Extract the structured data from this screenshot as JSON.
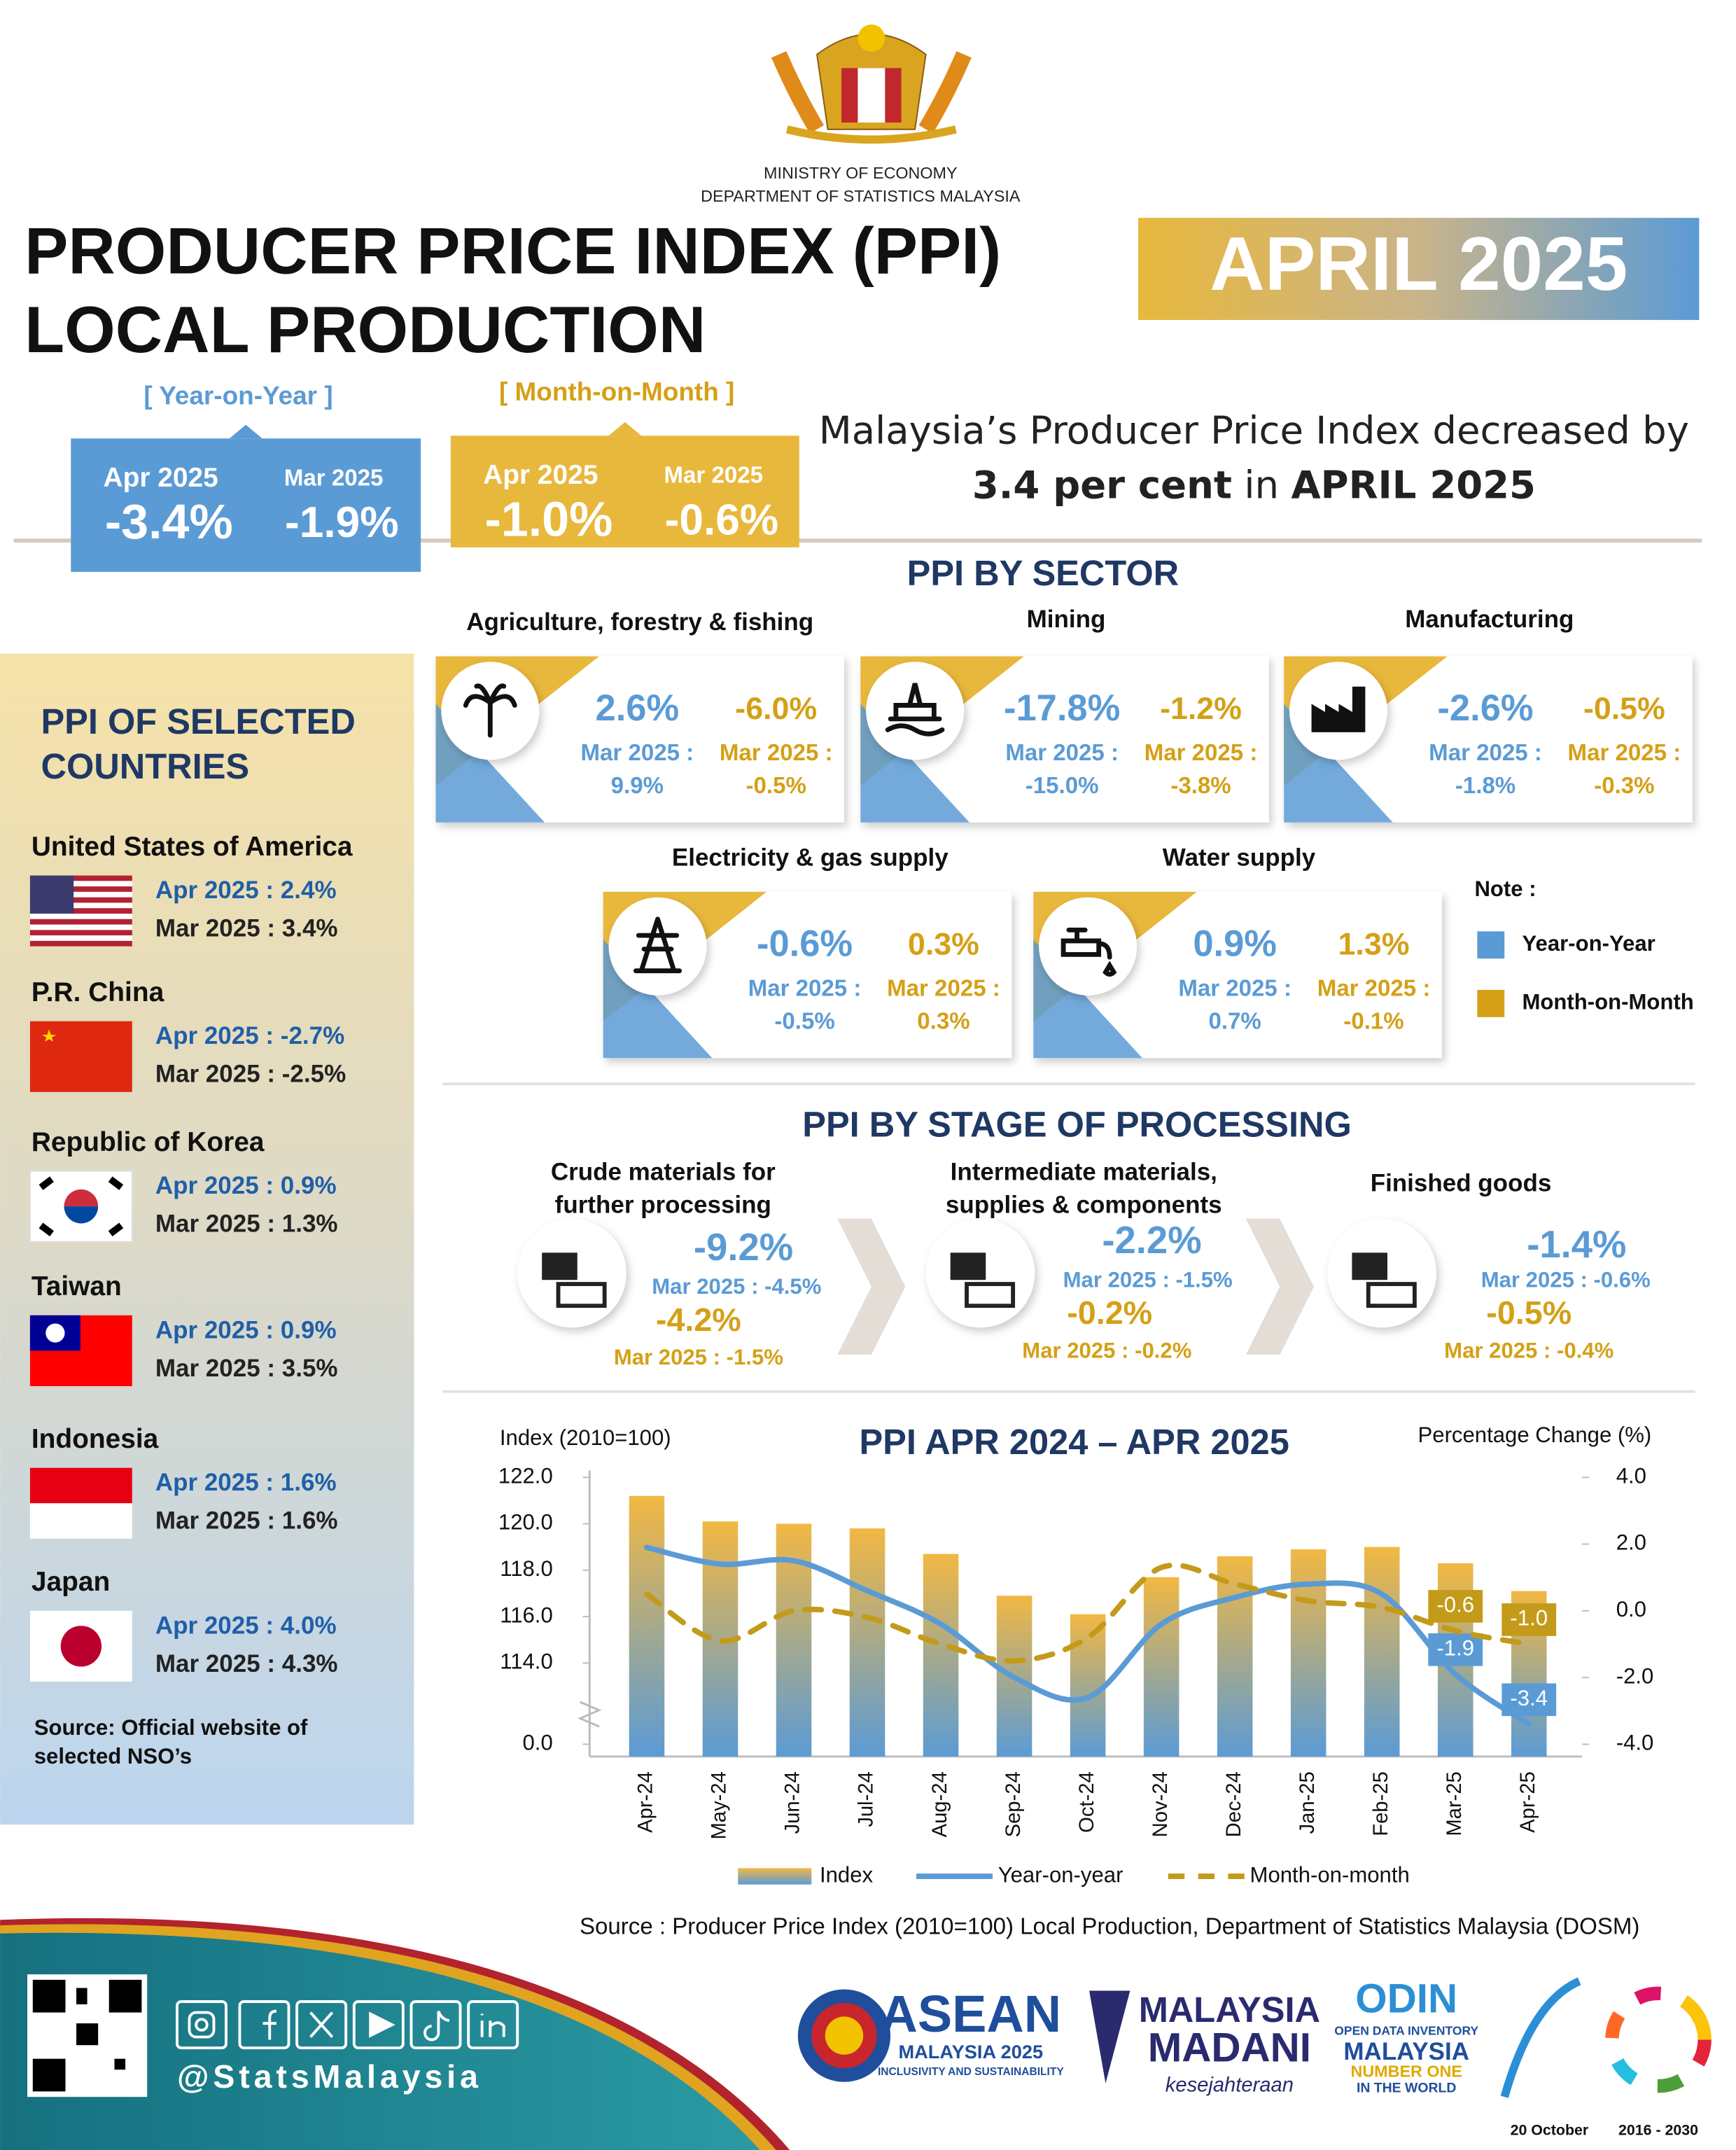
{
  "header": {
    "ministry": "MINISTRY OF ECONOMY",
    "department": "DEPARTMENT OF STATISTICS MALAYSIA",
    "title": [
      "PRODUCER PRICE INDEX (PPI)",
      "LOCAL PRODUCTION"
    ],
    "period": "APRIL 2025"
  },
  "headline": {
    "year_on_year": {
      "label": "[ Year-on-Year ]",
      "items": [
        {
          "period": "Apr 2025",
          "value": "-3.4%"
        },
        {
          "period": "Mar 2025",
          "value": "-1.9%"
        }
      ]
    },
    "month_on_month": {
      "label": "[ Month-on-Month ]",
      "items": [
        {
          "period": "Apr 2025",
          "value": "-1.0%"
        },
        {
          "period": "Mar 2025",
          "value": "-0.6%"
        }
      ]
    }
  },
  "summary": {
    "line1": "Malaysia’s Producer Price Index decreased by",
    "line2": [
      "3.4 per cent",
      "in",
      "APRIL 2025"
    ]
  },
  "sectors": {
    "title": "PPI BY SECTOR",
    "items": [
      {
        "name": "Agriculture, forestry & fishing",
        "yoy": "2.6%",
        "yoy_prev_label": "Mar 2025 :",
        "yoy_prev": "9.9%",
        "mom": "-6.0%",
        "mom_prev_label": "Mar 2025 :",
        "mom_prev": "-0.5%"
      },
      {
        "name": "Mining",
        "yoy": "-17.8%",
        "yoy_prev_label": "Mar 2025 :",
        "yoy_prev": "-15.0%",
        "mom": "-1.2%",
        "mom_prev_label": "Mar 2025 :",
        "mom_prev": "-3.8%"
      },
      {
        "name": "Manufacturing",
        "yoy": "-2.6%",
        "yoy_prev_label": "Mar 2025 :",
        "yoy_prev": "-1.8%",
        "mom": "-0.5%",
        "mom_prev_label": "Mar 2025 :",
        "mom_prev": "-0.3%"
      },
      {
        "name": "Electricity & gas supply",
        "yoy": "-0.6%",
        "yoy_prev_label": "Mar 2025 :",
        "yoy_prev": "-0.5%",
        "mom": "0.3%",
        "mom_prev_label": "Mar 2025 :",
        "mom_prev": "0.3%"
      },
      {
        "name": "Water supply",
        "yoy": "0.9%",
        "yoy_prev_label": "Mar 2025 :",
        "yoy_prev": "0.7%",
        "mom": "1.3%",
        "mom_prev_label": "Mar 2025 :",
        "mom_prev": "-0.1%"
      }
    ],
    "note": {
      "title": "Note :",
      "items": [
        "Year-on-Year",
        "Month-on-Month"
      ]
    }
  },
  "countries": {
    "title": [
      "PPI OF SELECTED",
      "COUNTRIES"
    ],
    "items": [
      {
        "name": "United States of America",
        "current": "Apr 2025 : 2.4%",
        "previous": "Mar 2025 : 3.4%"
      },
      {
        "name": "P.R. China",
        "current": "Apr 2025 : -2.7%",
        "previous": "Mar 2025 : -2.5%"
      },
      {
        "name": "Republic of Korea",
        "current": "Apr 2025 : 0.9%",
        "previous": "Mar 2025 : 1.3%"
      },
      {
        "name": "Taiwan",
        "current": "Apr 2025 : 0.9%",
        "previous": "Mar 2025 : 3.5%"
      },
      {
        "name": "Indonesia",
        "current": "Apr 2025 : 1.6%",
        "previous": "Mar 2025 : 1.6%"
      },
      {
        "name": "Japan",
        "current": "Apr 2025 : 4.0%",
        "previous": "Mar 2025 : 4.3%"
      }
    ],
    "source": [
      "Source: Official website of",
      "selected NSO’s"
    ]
  },
  "stages": {
    "title": "PPI BY STAGE OF PROCESSING",
    "items": [
      {
        "name": [
          "Crude materials for",
          "further processing"
        ],
        "yoy": "-9.2%",
        "yoy_prev": "Mar 2025 : -4.5%",
        "mom": "-4.2%",
        "mom_prev": "Mar 2025 : -1.5%"
      },
      {
        "name": [
          "Intermediate materials,",
          "supplies & components"
        ],
        "yoy": "-2.2%",
        "yoy_prev": "Mar 2025 : -1.5%",
        "mom": "-0.2%",
        "mom_prev": "Mar 2025 : -0.2%"
      },
      {
        "name": [
          "Finished goods"
        ],
        "yoy": "-1.4%",
        "yoy_prev": "Mar 2025 : -0.6%",
        "mom": "-0.5%",
        "mom_prev": "Mar 2025 : -0.4%"
      }
    ]
  },
  "chart_data": {
    "type": "bar",
    "title": "PPI APR 2024 – APR 2025",
    "ylabel": "Index (2010=100)",
    "y2label": "Percentage Change (%)",
    "categories": [
      "Apr-24",
      "May-24",
      "Jun-24",
      "Jul-24",
      "Aug-24",
      "Sep-24",
      "Oct-24",
      "Nov-24",
      "Dec-24",
      "Jan-25",
      "Feb-25",
      "Mar-25",
      "Apr-25"
    ],
    "series": [
      {
        "name": "Index",
        "type": "bar",
        "axis": "y",
        "colors": [
          "#f2b843",
          "#5b9bd5"
        ],
        "values": [
          121.2,
          120.1,
          120.0,
          119.8,
          118.7,
          116.9,
          116.1,
          117.7,
          118.6,
          118.9,
          119.0,
          118.3,
          117.1
        ]
      },
      {
        "name": "Year-on-year",
        "type": "line",
        "axis": "y2",
        "color": "#5b9bd5",
        "style": "solid",
        "values": [
          1.9,
          1.4,
          1.5,
          0.6,
          -0.4,
          -2.0,
          -2.6,
          -0.4,
          0.4,
          0.8,
          0.5,
          -1.9,
          -3.4
        ],
        "value_labels": [
          null,
          null,
          null,
          null,
          null,
          null,
          null,
          null,
          null,
          null,
          null,
          "-1.9",
          "-3.4"
        ]
      },
      {
        "name": "Month-on-month",
        "type": "line",
        "axis": "y2",
        "color": "#c49a1a",
        "style": "dashed",
        "values": [
          0.5,
          -0.9,
          0.0,
          -0.2,
          -1.0,
          -1.5,
          -0.8,
          1.3,
          0.8,
          0.3,
          0.1,
          -0.6,
          -1.0
        ],
        "value_labels": [
          null,
          null,
          null,
          null,
          null,
          null,
          null,
          null,
          null,
          null,
          null,
          "-0.6",
          "-1.0"
        ]
      }
    ],
    "ylim": [
      110.5,
      122
    ],
    "axis_break": true,
    "yticks": [
      {
        "value": 0,
        "label": "0.0"
      },
      {
        "value": 114,
        "label": "114.0"
      },
      {
        "value": 116,
        "label": "116.0"
      },
      {
        "value": 118,
        "label": "118.0"
      },
      {
        "value": 120,
        "label": "120.0"
      },
      {
        "value": 122,
        "label": "122.0"
      }
    ],
    "y2lim": [
      -4,
      4
    ],
    "y2ticks": [
      {
        "value": -4,
        "label": "-4.0"
      },
      {
        "value": -2,
        "label": "-2.0"
      },
      {
        "value": 0,
        "label": "0.0"
      },
      {
        "value": 2,
        "label": "2.0"
      },
      {
        "value": 4,
        "label": "4.0"
      }
    ],
    "grid": false,
    "legend": "bottom"
  },
  "source": "Source : Producer Price Index (2010=100) Local Production, Department of Statistics Malaysia (DOSM)",
  "footer": {
    "handle": "@StatsMalaysia",
    "logos": [
      "ASEAN",
      "MALAYSIA 2025",
      "INCLUSIVITY AND SUSTAINABILITY",
      "MALAYSIA",
      "MADANI",
      "kesejahteraan",
      "ODIN",
      "OPEN DATA INVENTORY",
      "MALAYSIA",
      "NUMBER ONE",
      "IN THE WORLD",
      "20 October",
      "2016 - 2030"
    ]
  }
}
